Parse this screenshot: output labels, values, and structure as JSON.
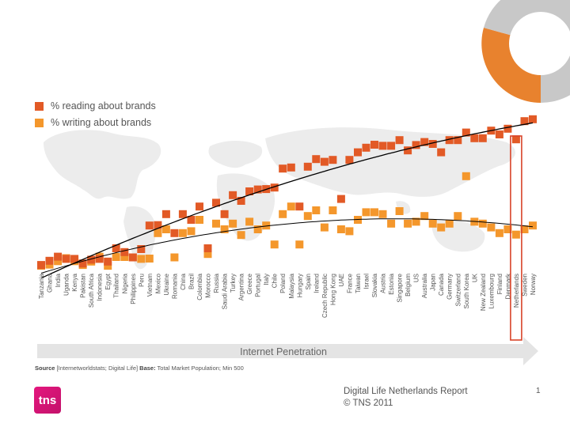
{
  "legend": {
    "reading_label": "% reading about brands",
    "writing_label": "% writing about brands"
  },
  "colors": {
    "reading": "#e25a26",
    "writing": "#f4972c",
    "highlight_box": "#d9452a",
    "trend_line": "#000000",
    "donut_orange": "#e8822e",
    "donut_grey": "#c8c8c8",
    "map_grey": "#e9e9e9",
    "arrow_grey": "#e4e4e4",
    "logo_pink": "#d4157a"
  },
  "arrow": {
    "label": "Internet Penetration"
  },
  "source": {
    "source_label": "Source",
    "source_text": " [Internetworldstats; Digital Life]  ",
    "base_label": "Base:",
    "base_text": " Total Market Population; Min 500"
  },
  "footer": {
    "line1": "Digital Life  Netherlands  Report",
    "line2": "© TNS 2011",
    "page_number": "1",
    "logo_text": "tns"
  },
  "highlight": {
    "country": "Netherlands"
  },
  "chart_data": {
    "type": "scatter",
    "x_label": "Internet Penetration",
    "categories": [
      "Tanzania",
      "Ghana",
      "India",
      "Uganda",
      "Kenya",
      "Pakistan",
      "South Africa",
      "Indonesia",
      "Egypt",
      "Thailand",
      "Nigeria",
      "Philippines",
      "Peru",
      "Vietnam",
      "Mexico",
      "Ukraine",
      "Romania",
      "China",
      "Brazil",
      "Colombia",
      "Morocco",
      "Russia",
      "Saudi Arabia",
      "Turkey",
      "Argentina",
      "Greece",
      "Portugal",
      "Italy",
      "Chile",
      "Poland",
      "Malaysia",
      "Hungary",
      "Spain",
      "Ireland",
      "Czech Republic",
      "Hong Kong",
      "UAE",
      "France",
      "Taiwan",
      "Israel",
      "Slovakia",
      "Austria",
      "Estonia",
      "Singapore",
      "Belgium",
      "US",
      "Australia",
      "Japan",
      "Canada",
      "Germany",
      "Switzerland",
      "South Korea",
      "UK",
      "New Zealand",
      "Luxembourg",
      "Finland",
      "Denmark",
      "Netherlands",
      "Sweden",
      "Norway"
    ],
    "series": [
      {
        "name": "% reading about brands",
        "values": [
          0.6,
          1.7,
          2.8,
          2.2,
          2.2,
          1.0,
          2.0,
          2.2,
          1.5,
          5.0,
          4.0,
          2.6,
          4.8,
          11.0,
          11.1,
          14.0,
          9.0,
          14.0,
          12.5,
          16.0,
          5.0,
          17.0,
          14.0,
          19.0,
          17.5,
          20.0,
          20.5,
          20.6,
          21.0,
          26.0,
          26.3,
          16.0,
          26.5,
          28.5,
          27.8,
          28.3,
          18.0,
          28.3,
          30.3,
          31.5,
          32.3,
          32.0,
          32.0,
          33.5,
          30.8,
          32.2,
          33.0,
          32.5,
          30.3,
          33.5,
          33.5,
          35.5,
          34.0,
          34.0,
          36.0,
          35.0,
          36.5,
          33.7,
          38.5,
          39.0
        ]
      },
      {
        "name": "% writing about brands",
        "values": [
          0.4,
          0.7,
          1.6,
          2.4,
          1.6,
          0.6,
          1.5,
          2.8,
          0.4,
          2.7,
          2.7,
          2.6,
          2.2,
          2.3,
          9.0,
          10.0,
          2.6,
          9.0,
          9.5,
          12.5,
          3.5,
          11.5,
          10.0,
          11.5,
          8.5,
          12.0,
          10.0,
          11.0,
          6.0,
          14.0,
          16.0,
          6.0,
          13.5,
          15.0,
          10.5,
          15.0,
          10.0,
          9.5,
          12.5,
          14.5,
          14.5,
          14.0,
          11.5,
          14.8,
          11.5,
          12.0,
          13.5,
          11.5,
          10.5,
          11.5,
          13.5,
          24.0,
          12.0,
          11.5,
          10.5,
          9.0,
          10.0,
          8.6,
          10.0,
          11.0
        ]
      }
    ],
    "trend_lines": "polynomial trend line for each series",
    "ylim": [
      0,
      40
    ],
    "grid": false,
    "legend_position": "top-left",
    "y_axis_shown": false
  }
}
